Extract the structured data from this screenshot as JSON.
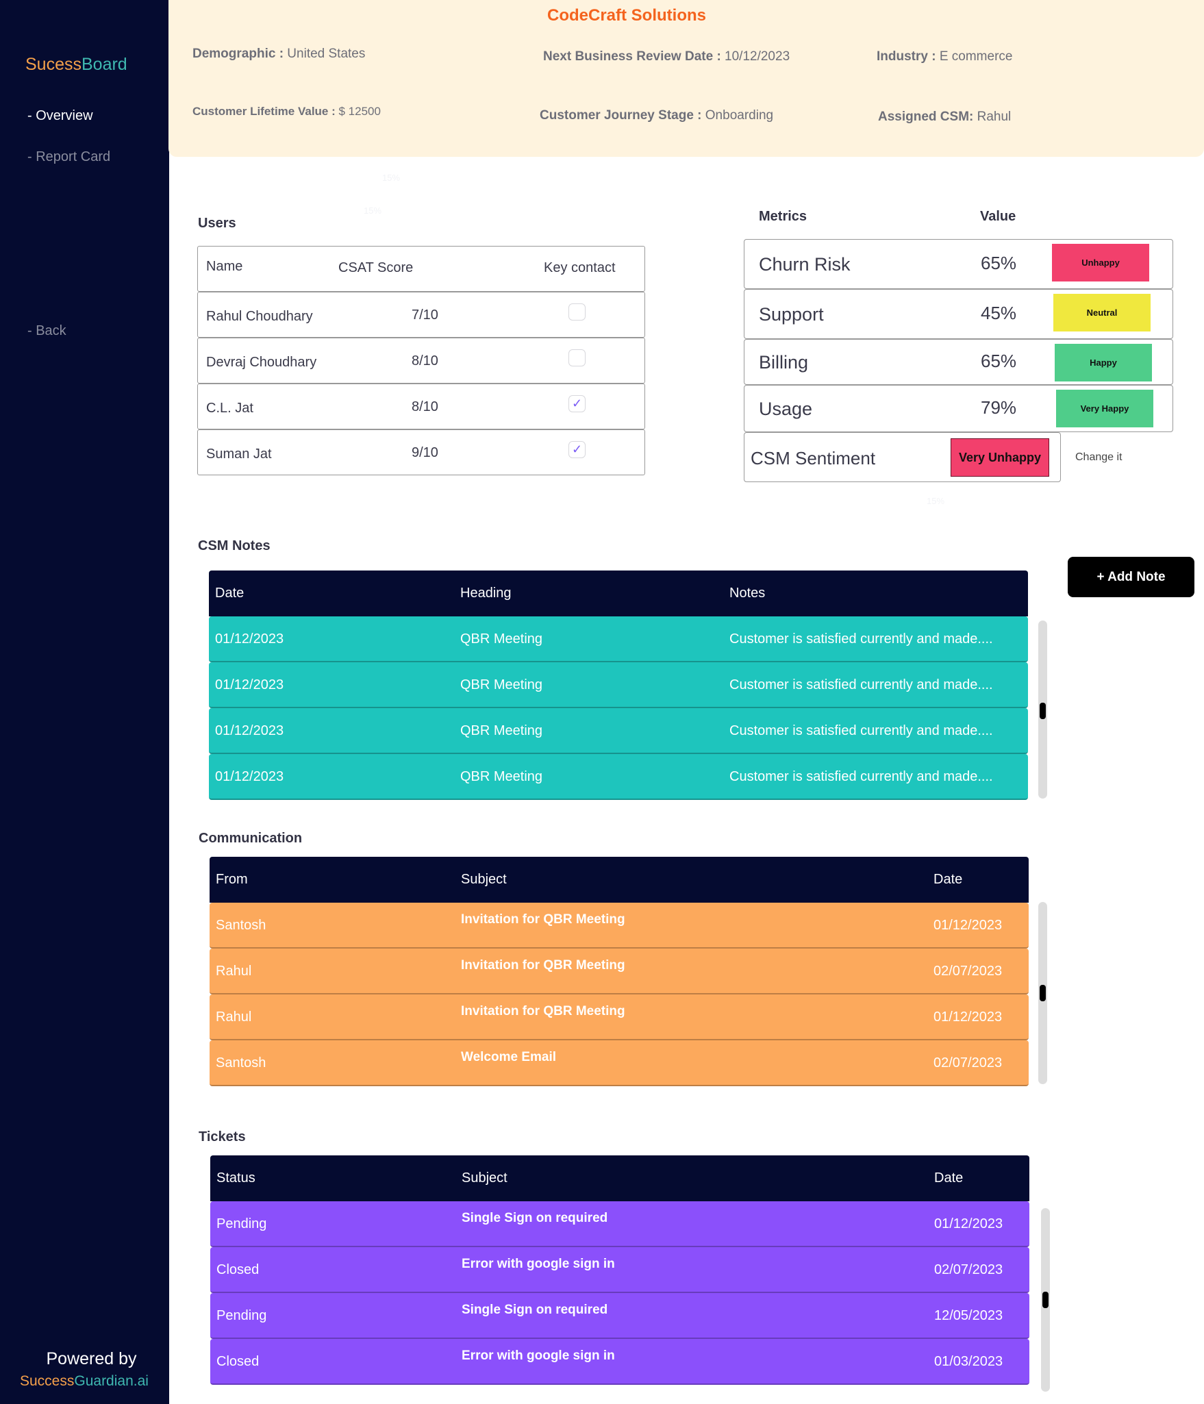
{
  "sidebar": {
    "logo_a": "Sucess",
    "logo_b": "Board",
    "items": [
      "- Overview",
      "- Report Card",
      "- Back"
    ],
    "powered_by": "Powered by",
    "brand_a": "Success",
    "brand_b": "Guardian.ai"
  },
  "header": {
    "company": "CodeCraft Solutions",
    "fields": [
      {
        "k": "Demographic :",
        "v": " United States"
      },
      {
        "k": "Next Business Review Date :",
        "v": " 10/12/2023"
      },
      {
        "k": "Industry :",
        "v": " E commerce"
      },
      {
        "k": "Customer Lifetime Value :",
        "v": " $ 12500"
      },
      {
        "k": "Customer Journey Stage :",
        "v": " Onboarding"
      },
      {
        "k": "Assigned CSM:",
        "v": " Rahul"
      }
    ]
  },
  "ghost_labels": [
    "15%",
    "15%",
    "15%"
  ],
  "users": {
    "title": "Users",
    "columns": [
      "Name",
      "CSAT Score",
      "Key contact"
    ],
    "rows": [
      {
        "name": "Rahul Choudhary",
        "csat": "7/10",
        "key": false
      },
      {
        "name": "Devraj Choudhary",
        "csat": "8/10",
        "key": false
      },
      {
        "name": "C.L. Jat",
        "csat": "8/10",
        "key": true
      },
      {
        "name": "Suman Jat",
        "csat": "9/10",
        "key": true
      }
    ]
  },
  "metrics": {
    "col_metric": "Metrics",
    "col_value": "Value",
    "rows": [
      {
        "name": "Churn Risk",
        "value": "65%",
        "status": "Unhappy",
        "color": "#f2406c"
      },
      {
        "name": "Support",
        "value": "45%",
        "status": "Neutral",
        "color": "#f0e83e"
      },
      {
        "name": "Billing",
        "value": "65%",
        "status": "Happy",
        "color": "#4fcd8a"
      },
      {
        "name": "Usage",
        "value": "79%",
        "status": "Very Happy",
        "color": "#4fcd8a"
      }
    ],
    "sentiment_label": "CSM Sentiment",
    "sentiment": "Very Unhappy",
    "sentiment_color": "#f2406c",
    "change": "Change it"
  },
  "notes": {
    "title": "CSM Notes",
    "add": "+ Add  Note",
    "columns": [
      "Date",
      "Heading",
      "Notes"
    ],
    "color": "#1ec5bd",
    "rows": [
      [
        "01/12/2023",
        "QBR Meeting",
        "Customer is satisfied currently and made...."
      ],
      [
        "01/12/2023",
        "QBR Meeting",
        "Customer is satisfied currently and made...."
      ],
      [
        "01/12/2023",
        "QBR Meeting",
        "Customer is satisfied currently and made...."
      ],
      [
        "01/12/2023",
        "QBR Meeting",
        "Customer is satisfied currently and made...."
      ]
    ]
  },
  "communication": {
    "title": "Communication",
    "columns": [
      "From",
      "Subject",
      "Date"
    ],
    "color": "#fca95c",
    "rows": [
      [
        "Santosh",
        "Invitation for QBR Meeting",
        "01/12/2023"
      ],
      [
        "Rahul",
        "Invitation for QBR Meeting",
        "02/07/2023"
      ],
      [
        "Rahul",
        "Invitation for QBR Meeting",
        "01/12/2023"
      ],
      [
        "Santosh",
        "Welcome Email",
        "02/07/2023"
      ]
    ]
  },
  "tickets": {
    "title": "Tickets",
    "columns": [
      "Status",
      "Subject",
      "Date"
    ],
    "color": "#8b50fb",
    "rows": [
      [
        "Pending",
        "Single Sign on required",
        "01/12/2023"
      ],
      [
        "Closed",
        "Error with google sign in",
        "02/07/2023"
      ],
      [
        "Pending",
        "Single Sign on required",
        "12/05/2023"
      ],
      [
        "Closed",
        "Error with google sign in",
        "01/03/2023"
      ]
    ]
  }
}
